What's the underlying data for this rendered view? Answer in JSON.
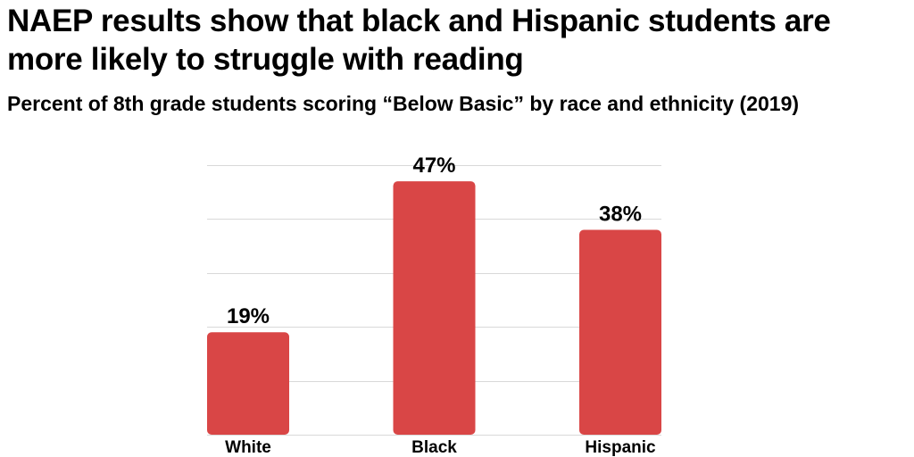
{
  "title": "NAEP results show that black and Hispanic students are more likely to struggle with reading",
  "subtitle": "Percent of 8th grade students scoring “Below Basic” by race and ethnicity (2019)",
  "colors": {
    "bar": "#d94646",
    "grid": "#d9d9d9",
    "text": "#000000"
  },
  "chart_data": {
    "type": "bar",
    "title": "NAEP results show that black and Hispanic students are more likely to struggle with reading",
    "subtitle": "Percent of 8th grade students scoring “Below Basic” by race and ethnicity (2019)",
    "categories": [
      "White",
      "Black",
      "Hispanic"
    ],
    "values": [
      19,
      47,
      38
    ],
    "value_labels": [
      "19%",
      "47%",
      "38%"
    ],
    "xlabel": "",
    "ylabel": "",
    "ylim": [
      0,
      50
    ],
    "grid": true,
    "legend": "none"
  }
}
